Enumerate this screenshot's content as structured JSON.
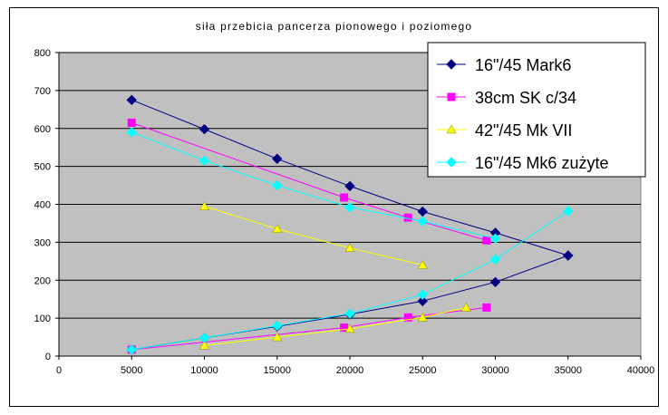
{
  "chart_data": {
    "type": "scatter",
    "title": "siła przebicia pancerza pionowego i poziomego",
    "xlabel": "",
    "ylabel": "",
    "xlim": [
      0,
      40000
    ],
    "ylim": [
      0,
      800
    ],
    "xticks": [
      "0",
      "5000",
      "10000",
      "15000",
      "20000",
      "25000",
      "30000",
      "35000",
      "40000"
    ],
    "yticks": [
      "0",
      "100",
      "200",
      "300",
      "400",
      "500",
      "600",
      "700",
      "800"
    ],
    "grid": "horizontal",
    "legend_position": "top-right",
    "plot_background": "#c0c0c0",
    "series": [
      {
        "name": "16\"/45 Mark6",
        "color": "#000080",
        "marker": "diamond",
        "branches": [
          [
            [
              5000,
              675
            ],
            [
              10000,
              598
            ],
            [
              15000,
              520
            ],
            [
              20000,
              448
            ],
            [
              25000,
              381
            ],
            [
              30000,
              325
            ],
            [
              35000,
              265
            ]
          ],
          [
            [
              5000,
              17
            ],
            [
              10000,
              48
            ],
            [
              15000,
              78
            ],
            [
              20000,
              110
            ],
            [
              25000,
              145
            ],
            [
              30000,
              195
            ],
            [
              35000,
              265
            ]
          ]
        ]
      },
      {
        "name": "38cm SK c/34",
        "color": "#ff00ff",
        "marker": "square",
        "branches": [
          [
            [
              5000,
              615
            ],
            [
              19600,
              418
            ],
            [
              24000,
              365
            ],
            [
              29400,
              305
            ]
          ],
          [
            [
              5000,
              17
            ],
            [
              19600,
              75
            ],
            [
              24000,
              102
            ],
            [
              29400,
              128
            ]
          ]
        ]
      },
      {
        "name": "42\"/45 Mk VII",
        "color": "#ffff00",
        "marker": "triangle",
        "branches": [
          [
            [
              10000,
              395
            ],
            [
              15000,
              335
            ],
            [
              20000,
              285
            ],
            [
              25000,
              240
            ]
          ],
          [
            [
              10000,
              28
            ],
            [
              15000,
              50
            ],
            [
              20000,
              72
            ],
            [
              25000,
              102
            ],
            [
              28000,
              128
            ]
          ]
        ]
      },
      {
        "name": "16\"/45 Mk6 zużyte",
        "color": "#00ffff",
        "marker": "diamond",
        "branches": [
          [
            [
              5000,
              590
            ],
            [
              10000,
              515
            ],
            [
              15000,
              450
            ],
            [
              20000,
              392
            ],
            [
              25000,
              355
            ],
            [
              30000,
              310
            ]
          ],
          [
            [
              5000,
              17
            ],
            [
              10000,
              48
            ],
            [
              15000,
              80
            ],
            [
              20000,
              112
            ],
            [
              25000,
              162
            ],
            [
              30000,
              255
            ],
            [
              35000,
              382
            ]
          ]
        ]
      }
    ]
  }
}
